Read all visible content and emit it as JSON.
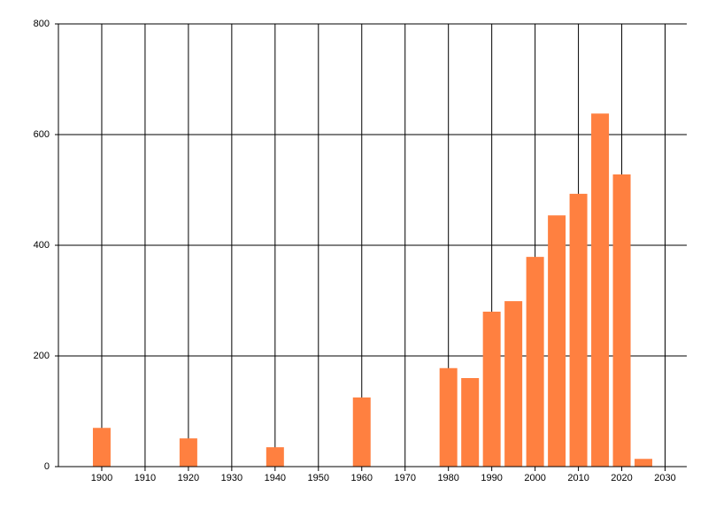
{
  "chart_data": {
    "type": "bar",
    "x": [
      1900,
      1920,
      1940,
      1960,
      1980,
      1985,
      1990,
      1995,
      2000,
      2005,
      2010,
      2015,
      2020,
      2025
    ],
    "values": [
      70,
      51,
      35,
      125,
      178,
      160,
      280,
      299,
      379,
      454,
      493,
      638,
      528,
      14
    ],
    "color": "#ff8040",
    "xlim": [
      1890,
      2035
    ],
    "xticks": [
      1900,
      1910,
      1920,
      1930,
      1940,
      1950,
      1960,
      1970,
      1980,
      1990,
      2000,
      2010,
      2020,
      2030
    ],
    "ylim": [
      0,
      800
    ],
    "yticks": [
      0,
      200,
      400,
      600,
      800
    ],
    "grid": true
  }
}
